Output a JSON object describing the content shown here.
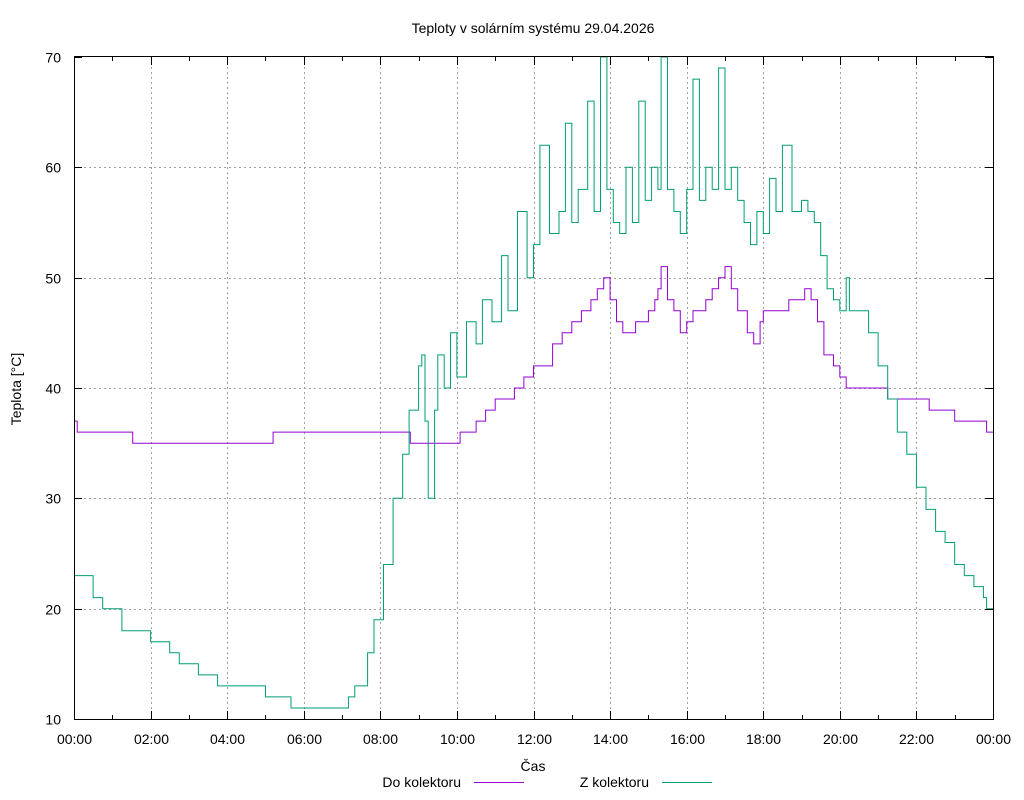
{
  "chart_data": {
    "type": "line",
    "title": "Teploty v solárním systému 29.04.2026",
    "xlabel": "Čas",
    "ylabel": "Teplota [°C]",
    "xlim": [
      "00:00",
      "24:00"
    ],
    "ylim": [
      10,
      70
    ],
    "grid": true,
    "legend_position": "bottom",
    "x_ticks": [
      "00:00",
      "02:00",
      "04:00",
      "06:00",
      "08:00",
      "10:00",
      "12:00",
      "14:00",
      "16:00",
      "18:00",
      "20:00",
      "22:00",
      "00:00"
    ],
    "y_ticks": [
      "10",
      "20",
      "30",
      "40",
      "50",
      "60",
      "70"
    ],
    "series": [
      {
        "name": "Do kolektoru",
        "color": "#9400d3",
        "points": [
          [
            "00:00",
            37
          ],
          [
            "00:05",
            36
          ],
          [
            "01:30",
            36
          ],
          [
            "01:32",
            35
          ],
          [
            "05:10",
            35
          ],
          [
            "05:12",
            36
          ],
          [
            "08:45",
            36
          ],
          [
            "08:47",
            35
          ],
          [
            "10:00",
            35
          ],
          [
            "10:05",
            36
          ],
          [
            "10:30",
            37
          ],
          [
            "10:45",
            38
          ],
          [
            "11:00",
            39
          ],
          [
            "11:30",
            40
          ],
          [
            "11:45",
            41
          ],
          [
            "12:00",
            42
          ],
          [
            "12:30",
            44
          ],
          [
            "12:45",
            45
          ],
          [
            "13:00",
            46
          ],
          [
            "13:15",
            47
          ],
          [
            "13:30",
            48
          ],
          [
            "13:40",
            49
          ],
          [
            "13:50",
            50
          ],
          [
            "14:00",
            48
          ],
          [
            "14:10",
            46
          ],
          [
            "14:20",
            45
          ],
          [
            "14:40",
            46
          ],
          [
            "15:00",
            47
          ],
          [
            "15:10",
            48
          ],
          [
            "15:15",
            49
          ],
          [
            "15:20",
            51
          ],
          [
            "15:30",
            48
          ],
          [
            "15:40",
            47
          ],
          [
            "15:50",
            45
          ],
          [
            "16:00",
            46
          ],
          [
            "16:10",
            47
          ],
          [
            "16:30",
            48
          ],
          [
            "16:40",
            49
          ],
          [
            "16:50",
            50
          ],
          [
            "17:00",
            51
          ],
          [
            "17:10",
            49
          ],
          [
            "17:20",
            47
          ],
          [
            "17:35",
            45
          ],
          [
            "17:45",
            44
          ],
          [
            "17:55",
            46
          ],
          [
            "18:00",
            47
          ],
          [
            "18:30",
            47
          ],
          [
            "18:40",
            48
          ],
          [
            "19:05",
            49
          ],
          [
            "19:15",
            48
          ],
          [
            "19:25",
            46
          ],
          [
            "19:35",
            43
          ],
          [
            "19:50",
            42
          ],
          [
            "20:00",
            41
          ],
          [
            "20:10",
            40
          ],
          [
            "21:10",
            40
          ],
          [
            "21:15",
            39
          ],
          [
            "22:15",
            39
          ],
          [
            "22:20",
            38
          ],
          [
            "22:55",
            38
          ],
          [
            "23:00",
            37
          ],
          [
            "23:45",
            37
          ],
          [
            "23:50",
            36
          ],
          [
            "24:00",
            36
          ]
        ]
      },
      {
        "name": "Z kolektoru",
        "color": "#009e73",
        "points": [
          [
            "00:00",
            23
          ],
          [
            "00:15",
            23
          ],
          [
            "00:30",
            21
          ],
          [
            "00:45",
            20
          ],
          [
            "01:00",
            20
          ],
          [
            "01:15",
            18
          ],
          [
            "02:00",
            17
          ],
          [
            "02:30",
            16
          ],
          [
            "02:45",
            15
          ],
          [
            "03:15",
            14
          ],
          [
            "03:45",
            13
          ],
          [
            "04:45",
            13
          ],
          [
            "05:00",
            12
          ],
          [
            "05:30",
            12
          ],
          [
            "05:40",
            11
          ],
          [
            "07:00",
            11
          ],
          [
            "07:10",
            12
          ],
          [
            "07:20",
            13
          ],
          [
            "07:40",
            16
          ],
          [
            "07:50",
            19
          ],
          [
            "08:05",
            24
          ],
          [
            "08:20",
            30
          ],
          [
            "08:35",
            34
          ],
          [
            "08:45",
            38
          ],
          [
            "09:00",
            42
          ],
          [
            "09:05",
            43
          ],
          [
            "09:10",
            37
          ],
          [
            "09:15",
            30
          ],
          [
            "09:25",
            38
          ],
          [
            "09:30",
            43
          ],
          [
            "09:40",
            40
          ],
          [
            "09:50",
            45
          ],
          [
            "10:00",
            41
          ],
          [
            "10:15",
            46
          ],
          [
            "10:30",
            44
          ],
          [
            "10:40",
            48
          ],
          [
            "10:55",
            46
          ],
          [
            "11:10",
            52
          ],
          [
            "11:20",
            47
          ],
          [
            "11:35",
            56
          ],
          [
            "11:50",
            50
          ],
          [
            "12:00",
            53
          ],
          [
            "12:10",
            62
          ],
          [
            "12:25",
            54
          ],
          [
            "12:40",
            56
          ],
          [
            "12:50",
            64
          ],
          [
            "13:00",
            55
          ],
          [
            "13:10",
            58
          ],
          [
            "13:25",
            66
          ],
          [
            "13:35",
            56
          ],
          [
            "13:45",
            70
          ],
          [
            "13:55",
            58
          ],
          [
            "14:05",
            55
          ],
          [
            "14:15",
            54
          ],
          [
            "14:25",
            60
          ],
          [
            "14:35",
            55
          ],
          [
            "14:45",
            66
          ],
          [
            "14:55",
            57
          ],
          [
            "15:05",
            60
          ],
          [
            "15:15",
            58
          ],
          [
            "15:20",
            70
          ],
          [
            "15:30",
            58
          ],
          [
            "15:40",
            56
          ],
          [
            "15:50",
            54
          ],
          [
            "16:00",
            58
          ],
          [
            "16:10",
            68
          ],
          [
            "16:20",
            57
          ],
          [
            "16:30",
            60
          ],
          [
            "16:40",
            58
          ],
          [
            "16:50",
            69
          ],
          [
            "17:00",
            58
          ],
          [
            "17:10",
            60
          ],
          [
            "17:20",
            57
          ],
          [
            "17:30",
            55
          ],
          [
            "17:40",
            53
          ],
          [
            "17:50",
            56
          ],
          [
            "18:00",
            54
          ],
          [
            "18:10",
            59
          ],
          [
            "18:20",
            56
          ],
          [
            "18:30",
            62
          ],
          [
            "18:45",
            56
          ],
          [
            "19:00",
            57
          ],
          [
            "19:10",
            56
          ],
          [
            "19:20",
            55
          ],
          [
            "19:30",
            52
          ],
          [
            "19:40",
            49
          ],
          [
            "19:50",
            48
          ],
          [
            "20:00",
            47
          ],
          [
            "20:10",
            50
          ],
          [
            "20:15",
            47
          ],
          [
            "20:30",
            47
          ],
          [
            "20:45",
            45
          ],
          [
            "21:00",
            42
          ],
          [
            "21:15",
            39
          ],
          [
            "21:30",
            36
          ],
          [
            "21:45",
            34
          ],
          [
            "22:00",
            31
          ],
          [
            "22:15",
            29
          ],
          [
            "22:30",
            27
          ],
          [
            "22:45",
            26
          ],
          [
            "23:00",
            24
          ],
          [
            "23:15",
            23
          ],
          [
            "23:30",
            22
          ],
          [
            "23:45",
            21
          ],
          [
            "23:50",
            20
          ],
          [
            "24:00",
            20
          ]
        ]
      }
    ]
  }
}
